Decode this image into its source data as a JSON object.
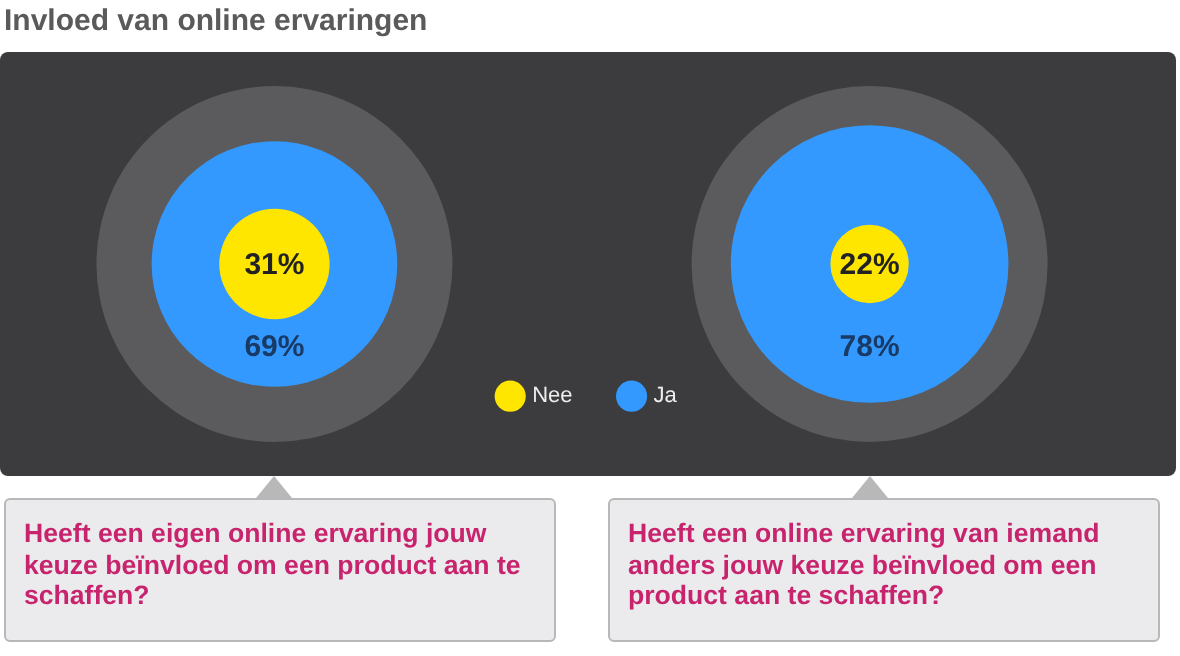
{
  "chart_data": {
    "type": "other",
    "title": "Invloed van online ervaringen",
    "categories": [
      "Heeft een eigen online ervaring jouw keuze beïnvloed om een product aan te schaffen?",
      "Heeft een online ervaring van iemand anders jouw keuze beïnvloed om een product aan te schaffen?"
    ],
    "legend": "bottom",
    "series": [
      {
        "name": "Nee",
        "color": "#ffe600",
        "values": [
          31,
          22
        ],
        "value_labels": [
          "31%",
          "22%"
        ]
      },
      {
        "name": "Ja",
        "color": "#3399ff",
        "values": [
          69,
          78
        ],
        "value_labels": [
          "69%",
          "78%"
        ]
      }
    ]
  }
}
